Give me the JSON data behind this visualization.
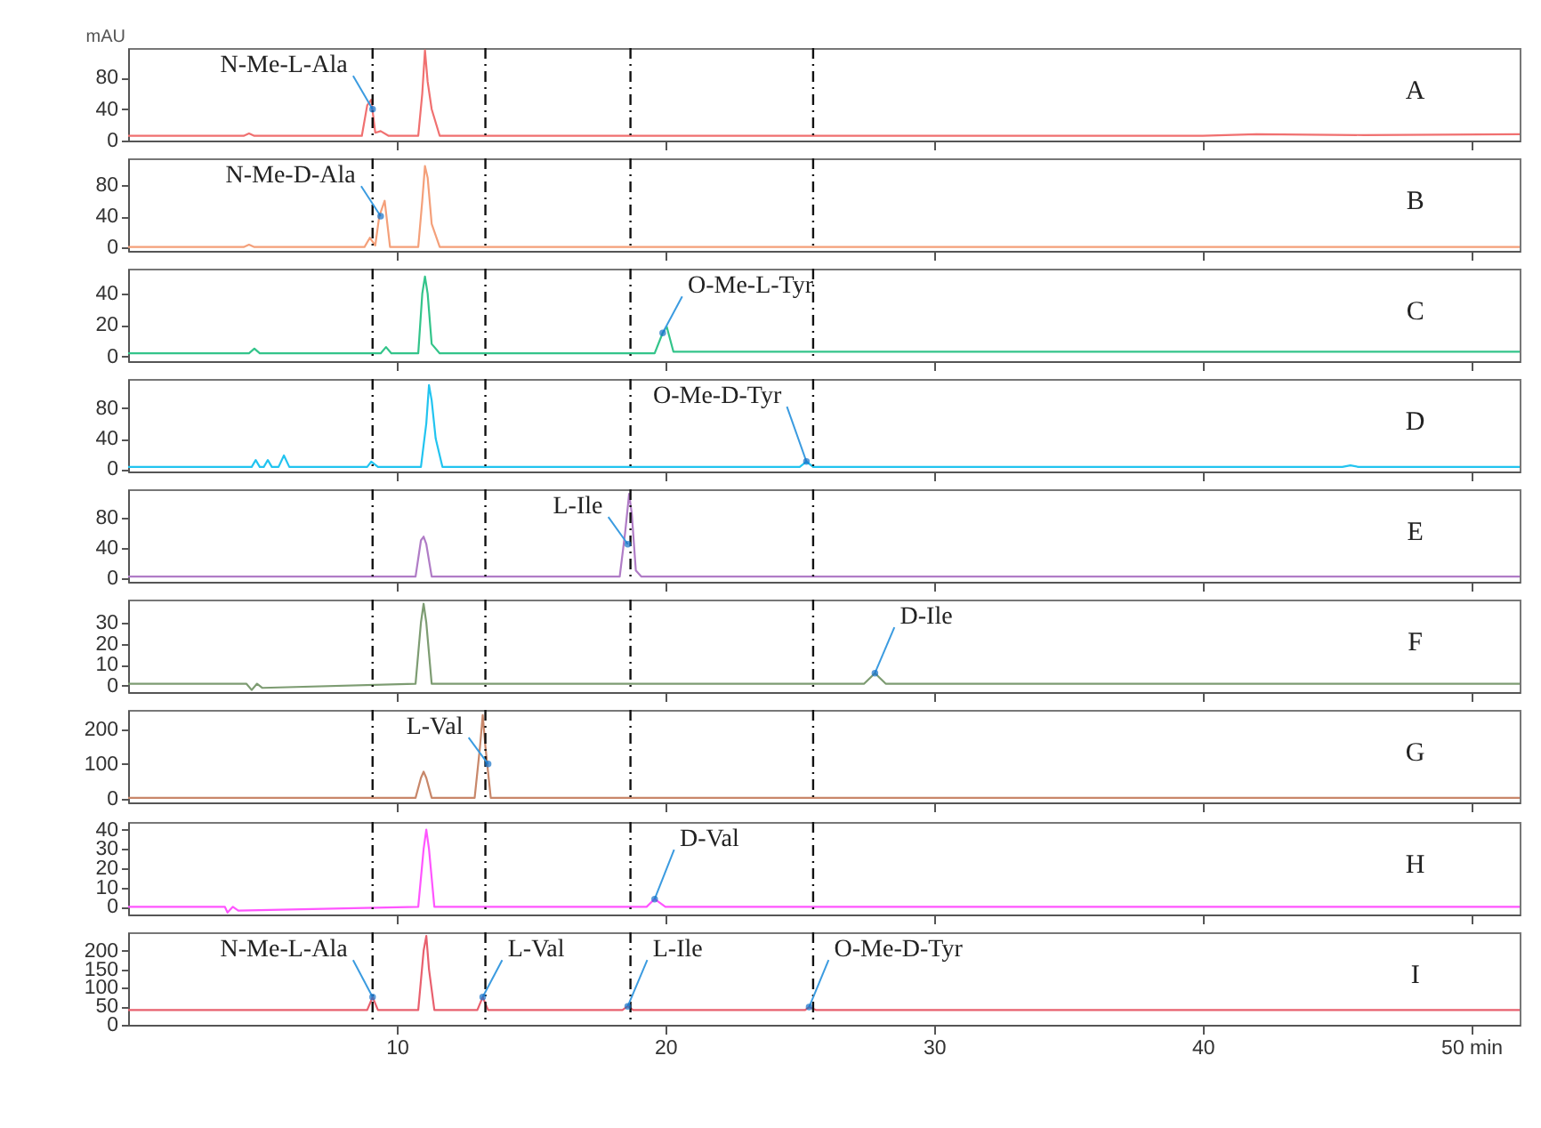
{
  "chart_data": [
    {
      "type": "line",
      "ylabel": "mAU",
      "xlim": [
        0,
        51.8
      ],
      "xticks": [
        10,
        20,
        30,
        40,
        {
          "value": 50,
          "label": null
        }
      ],
      "ylim": [
        0,
        118
      ],
      "yticks": [
        0,
        40,
        80
      ],
      "tick_labels": "y",
      "x": [
        0,
        4.3,
        4.5,
        4.7,
        8.7,
        8.9,
        9.05,
        9.2,
        9.4,
        9.7,
        10.8,
        10.95,
        11.05,
        11.15,
        11.3,
        11.6,
        40,
        42,
        46,
        51.8
      ],
      "series": [
        {
          "color": "#f07070",
          "values": [
            6,
            6,
            9,
            6,
            6,
            45,
            52,
            10,
            12,
            6,
            6,
            60,
            115,
            75,
            40,
            6,
            6,
            8,
            7,
            8
          ]
        }
      ],
      "ref_lines": [
        {
          "axis": "x",
          "value": 9.1,
          "line_style": "dashed"
        },
        {
          "axis": "x",
          "value": 13.3,
          "line_style": "dashed"
        },
        {
          "axis": "x",
          "value": 18.7,
          "line_style": "dashed"
        },
        {
          "axis": "x",
          "value": 25.5,
          "line_style": "dashed"
        }
      ],
      "annotations": [
        {
          "text": "N-Me-L-Ala",
          "x": 9.1,
          "y": 40
        },
        "A"
      ]
    },
    {
      "type": "line",
      "xlim": [
        0,
        51.8
      ],
      "xticks": [
        10,
        20,
        30,
        40,
        50
      ],
      "ylim": [
        -5,
        115
      ],
      "yticks": [
        0,
        40,
        80
      ],
      "tick_labels": "y",
      "x": [
        0,
        4.3,
        4.5,
        4.7,
        8.8,
        9.0,
        9.2,
        9.35,
        9.55,
        9.75,
        10.8,
        10.95,
        11.05,
        11.15,
        11.3,
        11.6,
        51.8
      ],
      "series": [
        {
          "color": "#f4a07a",
          "values": [
            0,
            0,
            3,
            0,
            0,
            12,
            2,
            40,
            60,
            0,
            0,
            60,
            105,
            90,
            30,
            0,
            0
          ]
        }
      ],
      "ref_lines": [
        {
          "axis": "x",
          "value": 9.1,
          "line_style": "dashed"
        },
        {
          "axis": "x",
          "value": 13.3,
          "line_style": "dashed"
        },
        {
          "axis": "x",
          "value": 18.7,
          "line_style": "dashed"
        },
        {
          "axis": "x",
          "value": 25.5,
          "line_style": "dashed"
        }
      ],
      "annotations": [
        {
          "text": "N-Me-D-Ala",
          "x": 9.4,
          "y": 40
        },
        "B"
      ]
    },
    {
      "type": "line",
      "xlim": [
        0,
        51.8
      ],
      "xticks": [
        10,
        20,
        30,
        40,
        50
      ],
      "ylim": [
        -3,
        56
      ],
      "yticks": [
        0,
        20,
        40
      ],
      "tick_labels": "y",
      "x": [
        0,
        4.5,
        4.7,
        4.9,
        9.4,
        9.6,
        9.8,
        10.8,
        10.95,
        11.05,
        11.15,
        11.3,
        11.6,
        19.6,
        19.9,
        20.05,
        20.3,
        51.8
      ],
      "series": [
        {
          "color": "#33c48a",
          "values": [
            2,
            2,
            5,
            2,
            2,
            6,
            2,
            2,
            40,
            51,
            40,
            8,
            2,
            2,
            15,
            19,
            3,
            3
          ]
        }
      ],
      "ref_lines": [
        {
          "axis": "x",
          "value": 9.1,
          "line_style": "dashed"
        },
        {
          "axis": "x",
          "value": 13.3,
          "line_style": "dashed"
        },
        {
          "axis": "x",
          "value": 18.7,
          "line_style": "dashed"
        },
        {
          "axis": "x",
          "value": 25.5,
          "line_style": "dashed"
        }
      ],
      "annotations": [
        {
          "text": "O-Me-L-Tyr",
          "x": 19.9,
          "y": 15
        },
        "C"
      ]
    },
    {
      "type": "line",
      "xlim": [
        0,
        51.8
      ],
      "xticks": [
        10,
        20,
        30,
        40,
        50
      ],
      "ylim": [
        -3,
        118
      ],
      "yticks": [
        0,
        40,
        80
      ],
      "tick_labels": "y",
      "x": [
        0,
        4.6,
        4.75,
        4.9,
        5.05,
        5.2,
        5.35,
        5.6,
        5.8,
        6.0,
        8.9,
        9.05,
        9.3,
        10.9,
        11.1,
        11.2,
        11.3,
        11.45,
        11.7,
        25.0,
        25.25,
        25.5,
        45.2,
        45.5,
        45.8,
        51.8
      ],
      "series": [
        {
          "color": "#22c4f0",
          "values": [
            3,
            3,
            12,
            3,
            3,
            12,
            3,
            3,
            18,
            3,
            3,
            10,
            3,
            3,
            60,
            110,
            90,
            40,
            3,
            3,
            10,
            3,
            3,
            5,
            3,
            3
          ]
        }
      ],
      "ref_lines": [
        {
          "axis": "x",
          "value": 9.1,
          "line_style": "dashed"
        },
        {
          "axis": "x",
          "value": 13.3,
          "line_style": "dashed"
        },
        {
          "axis": "x",
          "value": 18.7,
          "line_style": "dashed"
        },
        {
          "axis": "x",
          "value": 25.5,
          "line_style": "dashed"
        }
      ],
      "annotations": [
        {
          "text": "O-Me-D-Tyr",
          "x": 25.25,
          "y": 10
        },
        "D"
      ]
    },
    {
      "type": "line",
      "xlim": [
        0,
        51.8
      ],
      "xticks": [
        10,
        20,
        30,
        40,
        50
      ],
      "ylim": [
        -5,
        118
      ],
      "yticks": [
        0,
        40,
        80
      ],
      "tick_labels": "y",
      "x": [
        0,
        10.7,
        10.9,
        11.0,
        11.1,
        11.3,
        18.3,
        18.5,
        18.65,
        18.75,
        18.9,
        19.1,
        51.8
      ],
      "series": [
        {
          "color": "#b07cc6",
          "values": [
            2,
            2,
            50,
            55,
            45,
            2,
            2,
            60,
            112,
            85,
            10,
            2,
            2
          ]
        }
      ],
      "ref_lines": [
        {
          "axis": "x",
          "value": 9.1,
          "line_style": "dashed"
        },
        {
          "axis": "x",
          "value": 13.3,
          "line_style": "dashed"
        },
        {
          "axis": "x",
          "value": 18.7,
          "line_style": "dashed"
        },
        {
          "axis": "x",
          "value": 25.5,
          "line_style": "dashed"
        }
      ],
      "annotations": [
        {
          "text": "L-Ile",
          "x": 18.6,
          "y": 45
        },
        "E"
      ]
    },
    {
      "type": "line",
      "xlim": [
        0,
        51.8
      ],
      "xticks": [
        10,
        20,
        30,
        40,
        50
      ],
      "ylim": [
        -3,
        41
      ],
      "yticks": [
        0,
        10,
        20,
        30
      ],
      "tick_labels": "y",
      "x": [
        0,
        4.4,
        4.6,
        4.8,
        5.0,
        10.7,
        10.9,
        11.0,
        11.1,
        11.3,
        27.4,
        27.8,
        28.2,
        51.8
      ],
      "series": [
        {
          "color": "#7d9c72",
          "values": [
            1,
            1,
            -2,
            1,
            -1,
            1,
            30,
            39,
            30,
            1,
            1,
            6,
            1,
            1
          ]
        }
      ],
      "ref_lines": [
        {
          "axis": "x",
          "value": 9.1,
          "line_style": "dashed"
        },
        {
          "axis": "x",
          "value": 13.3,
          "line_style": "dashed"
        },
        {
          "axis": "x",
          "value": 18.7,
          "line_style": "dashed"
        },
        {
          "axis": "x",
          "value": 25.5,
          "line_style": "dashed"
        }
      ],
      "annotations": [
        {
          "text": "D-Ile",
          "x": 27.8,
          "y": 6
        },
        "F"
      ]
    },
    {
      "type": "line",
      "xlim": [
        0,
        51.8
      ],
      "xticks": [
        10,
        20,
        30,
        40,
        50
      ],
      "ylim": [
        -10,
        255
      ],
      "yticks": [
        0,
        100,
        200
      ],
      "tick_labels": "y",
      "x": [
        0,
        10.7,
        10.9,
        11.0,
        11.1,
        11.3,
        12.9,
        13.1,
        13.2,
        13.3,
        13.5,
        51.8
      ],
      "series": [
        {
          "color": "#c8876a",
          "values": [
            3,
            3,
            60,
            78,
            60,
            3,
            3,
            150,
            240,
            150,
            3,
            3
          ]
        }
      ],
      "ref_lines": [
        {
          "axis": "x",
          "value": 9.1,
          "line_style": "dashed"
        },
        {
          "axis": "x",
          "value": 13.3,
          "line_style": "dashed"
        },
        {
          "axis": "x",
          "value": 18.7,
          "line_style": "dashed"
        },
        {
          "axis": "x",
          "value": 25.5,
          "line_style": "dashed"
        }
      ],
      "annotations": [
        {
          "text": "L-Val",
          "x": 13.4,
          "y": 100
        },
        "G"
      ]
    },
    {
      "type": "line",
      "xlim": [
        0,
        51.8
      ],
      "xticks": [
        10,
        20,
        30,
        40,
        50
      ],
      "ylim": [
        -4,
        44
      ],
      "yticks": [
        0,
        10,
        20,
        30,
        40
      ],
      "tick_labels": "y",
      "x": [
        0,
        3.6,
        3.7,
        3.9,
        4.1,
        10.8,
        11.0,
        11.1,
        11.2,
        11.4,
        19.3,
        19.6,
        20.0,
        51.8
      ],
      "series": [
        {
          "color": "#ff55ff",
          "values": [
            0,
            0,
            -3,
            0,
            -2,
            0,
            30,
            40,
            30,
            0,
            0,
            4,
            0,
            0
          ]
        }
      ],
      "ref_lines": [
        {
          "axis": "x",
          "value": 9.1,
          "line_style": "dashed"
        },
        {
          "axis": "x",
          "value": 13.3,
          "line_style": "dashed"
        },
        {
          "axis": "x",
          "value": 18.7,
          "line_style": "dashed"
        },
        {
          "axis": "x",
          "value": 25.5,
          "line_style": "dashed"
        }
      ],
      "annotations": [
        {
          "text": "D-Val",
          "x": 19.6,
          "y": 4
        },
        "H"
      ]
    },
    {
      "type": "line",
      "xlim": [
        0,
        51.8
      ],
      "xticks": [
        10,
        20,
        30,
        40,
        {
          "value": 50,
          "label": "50 min"
        }
      ],
      "ylim": [
        0,
        250
      ],
      "yticks": [
        0,
        50,
        100,
        150,
        200
      ],
      "x": [
        0,
        8.9,
        9.1,
        9.3,
        10.8,
        11.0,
        11.1,
        11.2,
        11.4,
        13.0,
        13.2,
        13.4,
        18.4,
        18.6,
        18.8,
        25.2,
        25.35,
        25.6,
        51.8
      ],
      "series": [
        {
          "color": "#e8606e",
          "values": [
            40,
            40,
            75,
            40,
            40,
            200,
            240,
            150,
            40,
            40,
            75,
            40,
            40,
            50,
            40,
            40,
            48,
            40,
            40
          ]
        }
      ],
      "ref_lines": [
        {
          "axis": "x",
          "value": 9.1,
          "line_style": "dashed"
        },
        {
          "axis": "x",
          "value": 13.3,
          "line_style": "dashed"
        },
        {
          "axis": "x",
          "value": 18.7,
          "line_style": "dashed"
        },
        {
          "axis": "x",
          "value": 25.5,
          "line_style": "dashed"
        }
      ],
      "annotations": [
        {
          "text": "N-Me-L-Ala",
          "x": 9.1,
          "y": 75
        },
        {
          "text": "L-Val",
          "x": 13.2,
          "y": 75
        },
        {
          "text": "L-Ile",
          "x": 18.6,
          "y": 50
        },
        {
          "text": "O-Me-D-Tyr",
          "x": 25.35,
          "y": 48
        },
        "I"
      ]
    }
  ]
}
